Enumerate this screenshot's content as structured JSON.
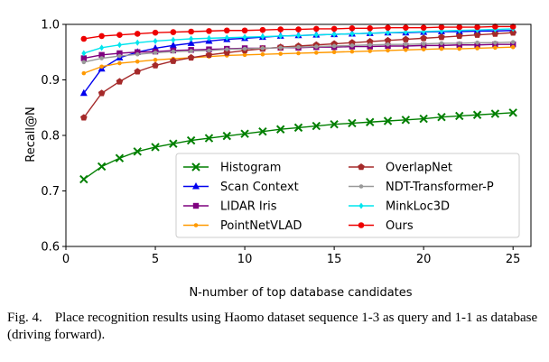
{
  "caption": {
    "label": "Fig. 4.",
    "text": "Place recognition results using Haomo dataset sequence 1-3 as query and 1-1 as database (driving forward)."
  },
  "chart_data": {
    "type": "line",
    "xlabel": "N-number of top database candidates",
    "ylabel": "Recall@N",
    "xlim": [
      0,
      26
    ],
    "ylim": [
      0.6,
      1.0
    ],
    "xticks": [
      0,
      5,
      10,
      15,
      20,
      25
    ],
    "yticks": [
      0.6,
      0.7,
      0.8,
      0.9,
      1.0
    ],
    "grid": false,
    "legend_position": "lower-right",
    "x": [
      1,
      2,
      3,
      4,
      5,
      6,
      7,
      8,
      9,
      10,
      11,
      12,
      13,
      14,
      15,
      16,
      17,
      18,
      19,
      20,
      21,
      22,
      23,
      24,
      25
    ],
    "series": [
      {
        "name": "Histogram",
        "color": "#007f00",
        "marker": "x",
        "values": [
          0.721,
          0.744,
          0.759,
          0.771,
          0.779,
          0.785,
          0.791,
          0.795,
          0.799,
          0.803,
          0.807,
          0.811,
          0.814,
          0.817,
          0.82,
          0.822,
          0.824,
          0.826,
          0.828,
          0.83,
          0.833,
          0.835,
          0.837,
          0.839,
          0.841
        ]
      },
      {
        "name": "Scan Context",
        "color": "#0000ee",
        "marker": "triangle",
        "values": [
          0.876,
          0.92,
          0.94,
          0.95,
          0.957,
          0.962,
          0.966,
          0.97,
          0.973,
          0.975,
          0.977,
          0.979,
          0.98,
          0.981,
          0.982,
          0.983,
          0.984,
          0.985,
          0.985,
          0.986,
          0.987,
          0.987,
          0.988,
          0.988,
          0.989
        ]
      },
      {
        "name": "LIDAR Iris",
        "color": "#7f007f",
        "marker": "square",
        "values": [
          0.939,
          0.945,
          0.948,
          0.95,
          0.951,
          0.953,
          0.954,
          0.955,
          0.956,
          0.957,
          0.957,
          0.958,
          0.958,
          0.959,
          0.959,
          0.96,
          0.96,
          0.961,
          0.961,
          0.962,
          0.962,
          0.963,
          0.963,
          0.964,
          0.964
        ]
      },
      {
        "name": "PointNetVLAD",
        "color": "#ff9900",
        "marker": "circle-small",
        "values": [
          0.912,
          0.924,
          0.93,
          0.933,
          0.936,
          0.938,
          0.94,
          0.942,
          0.944,
          0.945,
          0.946,
          0.947,
          0.948,
          0.949,
          0.95,
          0.951,
          0.952,
          0.953,
          0.954,
          0.955,
          0.956,
          0.956,
          0.957,
          0.958,
          0.959
        ]
      },
      {
        "name": "OverlapNet",
        "color": "#a52a2a",
        "marker": "pentagon",
        "values": [
          0.832,
          0.876,
          0.897,
          0.915,
          0.926,
          0.934,
          0.94,
          0.945,
          0.949,
          0.953,
          0.956,
          0.959,
          0.961,
          0.963,
          0.965,
          0.967,
          0.969,
          0.971,
          0.973,
          0.975,
          0.977,
          0.979,
          0.981,
          0.983,
          0.985
        ]
      },
      {
        "name": "NDT-Transformer-P",
        "color": "#999999",
        "marker": "circle-small",
        "values": [
          0.932,
          0.939,
          0.943,
          0.946,
          0.949,
          0.951,
          0.952,
          0.953,
          0.955,
          0.956,
          0.957,
          0.958,
          0.959,
          0.96,
          0.961,
          0.962,
          0.963,
          0.964,
          0.964,
          0.965,
          0.966,
          0.966,
          0.967,
          0.967,
          0.968
        ]
      },
      {
        "name": "MinkLoc3D",
        "color": "#00e5ee",
        "marker": "diamond",
        "values": [
          0.948,
          0.958,
          0.963,
          0.967,
          0.97,
          0.972,
          0.974,
          0.975,
          0.976,
          0.977,
          0.978,
          0.979,
          0.98,
          0.981,
          0.982,
          0.983,
          0.984,
          0.985,
          0.986,
          0.987,
          0.988,
          0.989,
          0.99,
          0.991,
          0.992
        ]
      },
      {
        "name": "Ours",
        "color": "#ee0000",
        "marker": "circle",
        "values": [
          0.974,
          0.979,
          0.981,
          0.983,
          0.985,
          0.986,
          0.987,
          0.988,
          0.989,
          0.989,
          0.99,
          0.991,
          0.991,
          0.992,
          0.992,
          0.993,
          0.993,
          0.994,
          0.994,
          0.994,
          0.995,
          0.995,
          0.995,
          0.996,
          0.996
        ]
      }
    ]
  }
}
